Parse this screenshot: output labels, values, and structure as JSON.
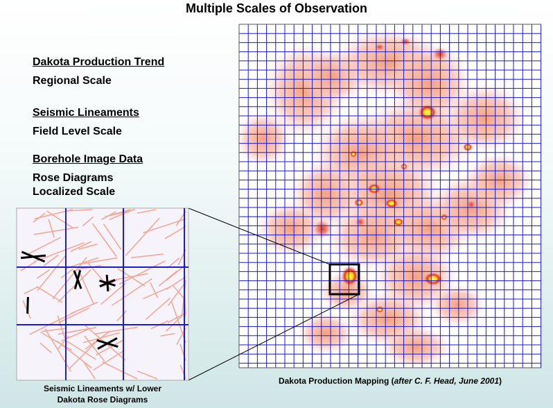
{
  "title": "Multiple Scales of Observation",
  "items": [
    {
      "heading": "Dakota Production Trend",
      "lines": [
        "Regional Scale"
      ]
    },
    {
      "heading": "Seismic Lineaments",
      "lines": [
        "Field Level Scale"
      ]
    },
    {
      "heading": "Borehole Image Data",
      "lines": [
        "Rose Diagrams",
        "Localized Scale"
      ]
    }
  ],
  "inset_caption": [
    "Seismic Lineaments w/ Lower",
    "Dakota Rose Diagrams"
  ],
  "map_caption": {
    "start": "Dakota Production Mapping (",
    "italic": "after C. F. Head, June 2001",
    "end": ")"
  }
}
